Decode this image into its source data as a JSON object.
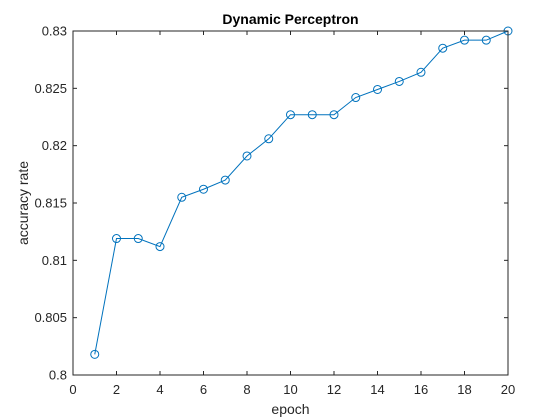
{
  "chart_data": {
    "type": "line",
    "title": "Dynamic Perceptron",
    "xlabel": "epoch",
    "ylabel": "accuracy rate",
    "xlim": [
      0,
      20
    ],
    "ylim": [
      0.8,
      0.83
    ],
    "xticks": [
      0,
      2,
      4,
      6,
      8,
      10,
      12,
      14,
      16,
      18,
      20
    ],
    "xtick_labels": [
      "0",
      "2",
      "4",
      "6",
      "8",
      "10",
      "12",
      "14",
      "16",
      "18",
      "20"
    ],
    "yticks": [
      0.8,
      0.805,
      0.81,
      0.815,
      0.82,
      0.825,
      0.83
    ],
    "ytick_labels": [
      "0.8",
      "0.805",
      "0.81",
      "0.815",
      "0.82",
      "0.825",
      "0.83"
    ],
    "grid": false,
    "legend": false,
    "series": [
      {
        "marker": "circle",
        "color": "#0072BD",
        "x": [
          1,
          2,
          3,
          4,
          5,
          6,
          7,
          8,
          9,
          10,
          11,
          12,
          13,
          14,
          15,
          16,
          17,
          18,
          19,
          20
        ],
        "y": [
          0.8018,
          0.8119,
          0.8119,
          0.8112,
          0.8155,
          0.8162,
          0.817,
          0.8191,
          0.8206,
          0.8227,
          0.8227,
          0.8227,
          0.8242,
          0.8249,
          0.8256,
          0.8264,
          0.8285,
          0.8292,
          0.8292,
          0.83
        ]
      }
    ]
  }
}
